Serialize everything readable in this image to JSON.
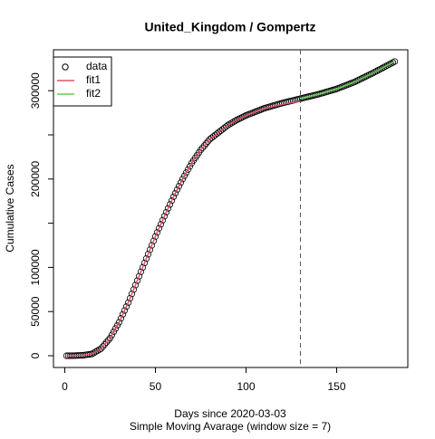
{
  "chart_data": {
    "type": "scatter-line",
    "title": "United_Kingdom / Gompertz",
    "x_label": "Days since 2020-03-03",
    "subtitle": "Simple Moving Avarage (window size = 7)",
    "y_label": "Cumulative Cases",
    "xlim": [
      -6.24,
      189.24
    ],
    "ylim": [
      -13300,
      346300
    ],
    "xticks": [
      0,
      50,
      100,
      150
    ],
    "yticks": [
      0,
      50000,
      100000,
      200000,
      300000
    ],
    "yticks_unlabeled": [
      150000,
      250000
    ],
    "vline": 130,
    "legend": "top-left",
    "series": [
      {
        "name": "data",
        "color": "#000000",
        "marker": "circle",
        "x": [
          1,
          2,
          3,
          4,
          5,
          6,
          7,
          8,
          9,
          10,
          11,
          12,
          13,
          14,
          15,
          16,
          17,
          18,
          19,
          20,
          21,
          22,
          23,
          24,
          25,
          26,
          27,
          28,
          29,
          30,
          31,
          32,
          33,
          34,
          35,
          36,
          37,
          38,
          39,
          40,
          41,
          42,
          43,
          44,
          45,
          46,
          47,
          48,
          49,
          50,
          51,
          52,
          53,
          54,
          55,
          56,
          57,
          58,
          59,
          60,
          61,
          62,
          63,
          64,
          65,
          66,
          67,
          68,
          69,
          70,
          71,
          72,
          73,
          74,
          75,
          76,
          77,
          78,
          79,
          80,
          81,
          82,
          83,
          84,
          85,
          86,
          87,
          88,
          89,
          90,
          91,
          92,
          93,
          94,
          95,
          96,
          97,
          98,
          99,
          100,
          101,
          102,
          103,
          104,
          105,
          106,
          107,
          108,
          109,
          110,
          111,
          112,
          113,
          114,
          115,
          116,
          117,
          118,
          119,
          120,
          121,
          122,
          123,
          124,
          125,
          126,
          127,
          128,
          129,
          130,
          131,
          132,
          133,
          134,
          135,
          136,
          137,
          138,
          139,
          140,
          141,
          142,
          143,
          144,
          145,
          146,
          147,
          148,
          149,
          150,
          151,
          152,
          153,
          154,
          155,
          156,
          157,
          158,
          159,
          160,
          161,
          162,
          163,
          164,
          165,
          166,
          167,
          168,
          169,
          170,
          171,
          172,
          173,
          174,
          175,
          176,
          177,
          178,
          179,
          180,
          181,
          182
        ],
        "values": [
          0,
          30,
          50,
          80,
          100,
          180,
          260,
          340,
          420,
          500,
          800,
          1100,
          1400,
          1700,
          2000,
          3200,
          4400,
          5600,
          6800,
          8000,
          10400,
          12800,
          15200,
          17600,
          20000,
          23600,
          27200,
          30800,
          34400,
          38000,
          42400,
          46800,
          51200,
          55600,
          60000,
          65000,
          70000,
          75000,
          80000,
          85000,
          90000,
          95000,
          100000,
          105000,
          110000,
          115000,
          120000,
          125000,
          130000,
          135000,
          139600,
          144200,
          148800,
          153400,
          158000,
          162400,
          166800,
          171200,
          175600,
          180000,
          184000,
          188000,
          192000,
          196000,
          200000,
          203600,
          207200,
          210800,
          214400,
          218000,
          221000,
          224000,
          227000,
          230000,
          233000,
          235400,
          237800,
          240200,
          242600,
          245000,
          246600,
          248200,
          249800,
          251400,
          253000,
          254600,
          256200,
          257800,
          259400,
          261000,
          262200,
          263400,
          264600,
          265800,
          267000,
          268000,
          269000,
          270000,
          271000,
          272000,
          272800,
          273600,
          274400,
          275200,
          276000,
          276800,
          277600,
          278400,
          279200,
          280000,
          280600,
          281200,
          281800,
          282400,
          283000,
          283600,
          284200,
          284800,
          285400,
          286000,
          286500,
          287000,
          287500,
          288000,
          288500,
          289000,
          289500,
          290000,
          290500,
          291000,
          291500,
          292000,
          292500,
          293000,
          293500,
          294000,
          294500,
          295000,
          295500,
          296000,
          296600,
          297200,
          297800,
          298400,
          299000,
          299600,
          300200,
          300800,
          301400,
          302000,
          302800,
          303600,
          304400,
          305200,
          306000,
          306800,
          307600,
          308400,
          309200,
          310000,
          311000,
          312000,
          313000,
          314000,
          315000,
          316000,
          317000,
          318000,
          319000,
          320000,
          321100,
          322200,
          323300,
          324300,
          325400,
          326500,
          327600,
          328700,
          329800,
          330800,
          331900,
          333000
        ]
      },
      {
        "name": "fit1",
        "color": "#DF536B",
        "marker": "line",
        "x": [
          1,
          5,
          10,
          15,
          20,
          25,
          30,
          35,
          40,
          45,
          50,
          55,
          60,
          65,
          70,
          75,
          80,
          85,
          90,
          95,
          100,
          110,
          120,
          130
        ],
        "values": [
          0,
          100,
          500,
          2000,
          8000,
          20000,
          38000,
          60000,
          85000,
          110000,
          135000,
          158000,
          180000,
          200000,
          218000,
          233000,
          245000,
          253000,
          261000,
          267000,
          272000,
          280000,
          284500,
          288000
        ]
      },
      {
        "name": "fit2",
        "color": "#61D04F",
        "marker": "line",
        "x": [
          130,
          140,
          150,
          160,
          170,
          182
        ],
        "values": [
          291000,
          296000,
          302000,
          310000,
          320000,
          333000
        ]
      }
    ]
  }
}
